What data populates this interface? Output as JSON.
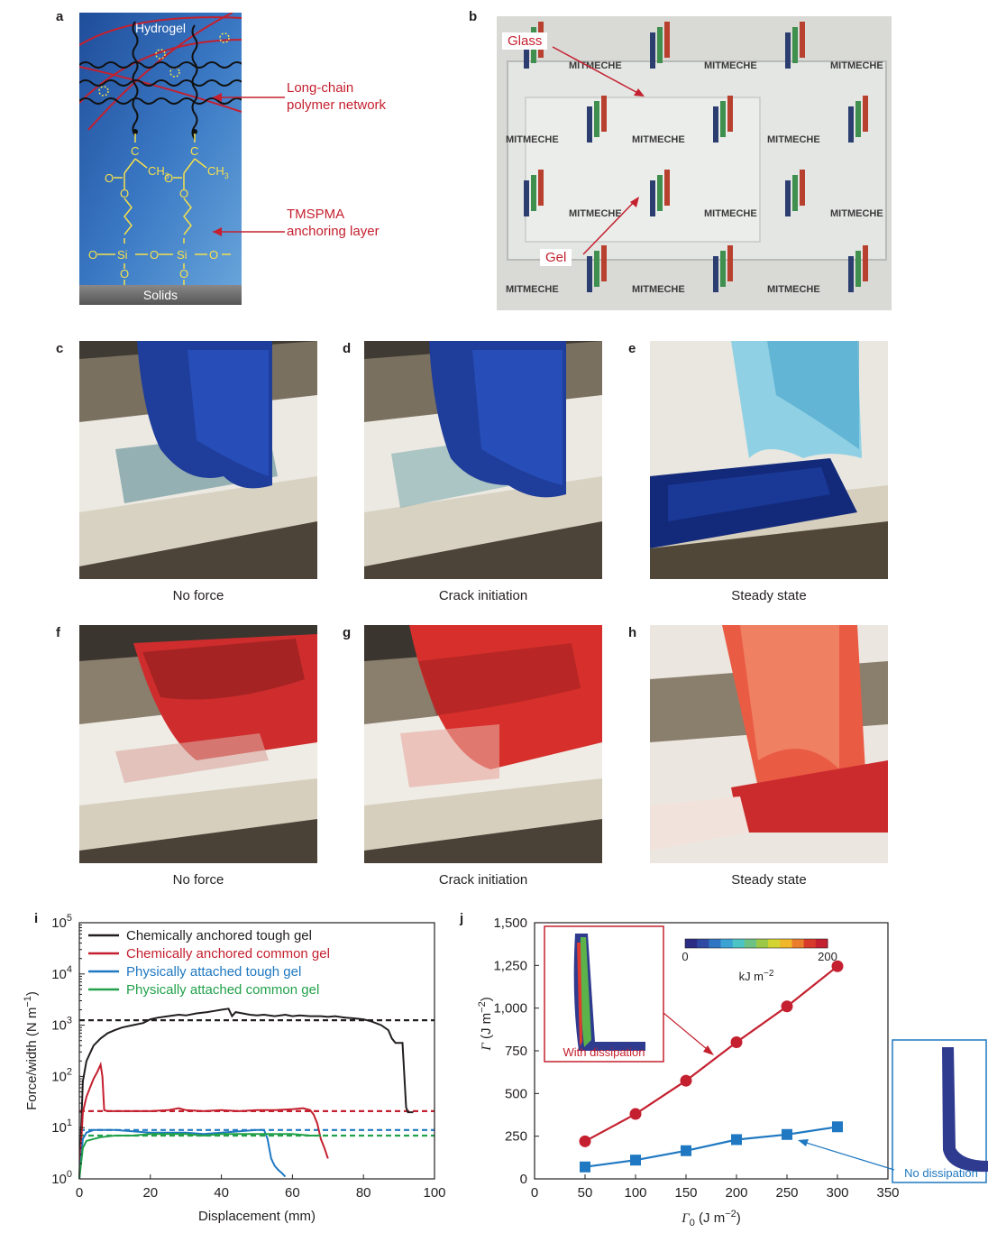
{
  "panels": {
    "a": {
      "letter": "a",
      "hydrogel": "Hydrogel",
      "ch3_left": "CH",
      "ch3_right": "CH",
      "ch3_sub": "3",
      "c_atom": "C",
      "o_atom": "O",
      "si_left": "Si",
      "si_right": "Si",
      "bridge_o": "O",
      "solids": "Solids",
      "label_network_1": "Long-chain",
      "label_network_2": "polymer network",
      "label_anchor_1": "TMSPMA",
      "label_anchor_2": "anchoring layer"
    },
    "b": {
      "letter": "b",
      "glass": "Glass",
      "gel": "Gel",
      "watermark": "MITMECHE"
    },
    "c": {
      "letter": "c",
      "caption": "No force"
    },
    "d": {
      "letter": "d",
      "caption": "Crack initiation"
    },
    "e": {
      "letter": "e",
      "caption": "Steady state"
    },
    "f": {
      "letter": "f",
      "caption": "No force"
    },
    "g": {
      "letter": "g",
      "caption": "Crack initiation"
    },
    "h": {
      "letter": "h",
      "caption": "Steady state"
    },
    "i": {
      "letter": "i"
    },
    "j": {
      "letter": "j",
      "colorbar_min": "0",
      "colorbar_max": "200",
      "colorbar_unit": "kJ m",
      "colorbar_unit_sup": "−2",
      "with_dissipation": "With dissipation",
      "no_dissipation": "No dissipation"
    }
  },
  "chart_data": [
    {
      "id": "i",
      "type": "line",
      "xlabel": "Displacement (mm)",
      "ylabel": "Force/width (N m",
      "ylabel_sup": "−1",
      "ylabel_close": ")",
      "xlim": [
        0,
        100
      ],
      "ylim": [
        1,
        100000
      ],
      "yscale": "log",
      "xticks": [
        "0",
        "20",
        "40",
        "60",
        "80",
        "100"
      ],
      "yticks": [
        {
          "base": "10",
          "exp": "0"
        },
        {
          "base": "10",
          "exp": "1"
        },
        {
          "base": "10",
          "exp": "2"
        },
        {
          "base": "10",
          "exp": "3"
        },
        {
          "base": "10",
          "exp": "4"
        },
        {
          "base": "10",
          "exp": "5"
        }
      ],
      "legend_position": "top-left",
      "series": [
        {
          "name": "Chemically anchored tough gel",
          "color": "#231f20",
          "plateau": 1250,
          "x": [
            0,
            1,
            2,
            4,
            6,
            8,
            10,
            12,
            15,
            18,
            20,
            22,
            25,
            28,
            30,
            33,
            36,
            38,
            40,
            42,
            43,
            44,
            46,
            48,
            50,
            52,
            55,
            58,
            60,
            62,
            65,
            68,
            70,
            72,
            75,
            78,
            80,
            82,
            85,
            87,
            88,
            89,
            90,
            91,
            92,
            92.5,
            93,
            94
          ],
          "y": [
            1,
            80,
            200,
            400,
            550,
            700,
            800,
            900,
            1000,
            1100,
            1300,
            1400,
            1500,
            1600,
            1550,
            1700,
            1800,
            1900,
            2000,
            2100,
            1500,
            1800,
            1700,
            1600,
            1550,
            1600,
            1500,
            1600,
            1500,
            1550,
            1500,
            1500,
            1450,
            1500,
            1400,
            1350,
            1300,
            1200,
            1000,
            800,
            550,
            450,
            450,
            450,
            25,
            20,
            20,
            20
          ]
        },
        {
          "name": "Chemically anchored common gel",
          "color": "#c4202f",
          "plateau": 21,
          "x": [
            0,
            1,
            2,
            3,
            4,
            5,
            6,
            6.5,
            7,
            8,
            10,
            15,
            20,
            25,
            28,
            30,
            35,
            40,
            45,
            50,
            55,
            60,
            63,
            65,
            66,
            67,
            68,
            69,
            70
          ],
          "y": [
            1,
            20,
            40,
            60,
            90,
            120,
            170,
            100,
            22,
            21,
            21,
            21,
            21,
            22,
            24,
            22,
            21,
            22,
            21,
            22,
            22,
            23,
            24,
            22,
            18,
            12,
            6,
            4,
            2.5
          ]
        },
        {
          "name": "Physically attached tough gel",
          "color": "#1f78c1",
          "plateau": 9,
          "x": [
            0,
            1,
            2,
            4,
            6,
            10,
            15,
            20,
            25,
            30,
            35,
            40,
            45,
            50,
            52,
            53,
            54,
            55,
            56,
            57,
            58
          ],
          "y": [
            1,
            6,
            8,
            9,
            9,
            9,
            8.5,
            8,
            8,
            8,
            7.5,
            8,
            8.5,
            9,
            9,
            6,
            2.5,
            1.8,
            1.5,
            1.3,
            1.1
          ]
        },
        {
          "name": "Physically attached common gel",
          "color": "#22a14b",
          "plateau": 7,
          "x": [
            0,
            1,
            2,
            4,
            6,
            10,
            15,
            20,
            25,
            30,
            35,
            40,
            45,
            50,
            55,
            60,
            65,
            68
          ],
          "y": [
            1,
            4,
            5.5,
            6,
            6.5,
            7,
            7,
            7.5,
            7.5,
            7.5,
            7,
            7.5,
            7.5,
            7.5,
            7.5,
            7.5,
            7,
            7
          ]
        }
      ]
    },
    {
      "id": "j",
      "type": "line",
      "xlabel": "Γ",
      "xlabel_sub": "0",
      "xlabel_unit": " (J m",
      "xlabel_sup": "−2",
      "xlabel_close": ")",
      "ylabel": "Γ",
      "ylabel_unit": " (J m",
      "ylabel_sup": "−2",
      "ylabel_close": ")",
      "xlim": [
        0,
        350
      ],
      "ylim": [
        0,
        1500
      ],
      "xticks": [
        "0",
        "50",
        "100",
        "150",
        "200",
        "250",
        "300",
        "350"
      ],
      "yticks": [
        "0",
        "250",
        "500",
        "750",
        "1,000",
        "1,250",
        "1,500"
      ],
      "categories": [
        50,
        100,
        150,
        200,
        250,
        300
      ],
      "series": [
        {
          "name": "With dissipation",
          "color": "#c4202f",
          "marker": "circle",
          "values": [
            220,
            380,
            575,
            800,
            1010,
            1245
          ]
        },
        {
          "name": "No dissipation",
          "color": "#1f78c1",
          "marker": "square",
          "values": [
            70,
            110,
            165,
            230,
            260,
            305
          ]
        }
      ]
    }
  ]
}
